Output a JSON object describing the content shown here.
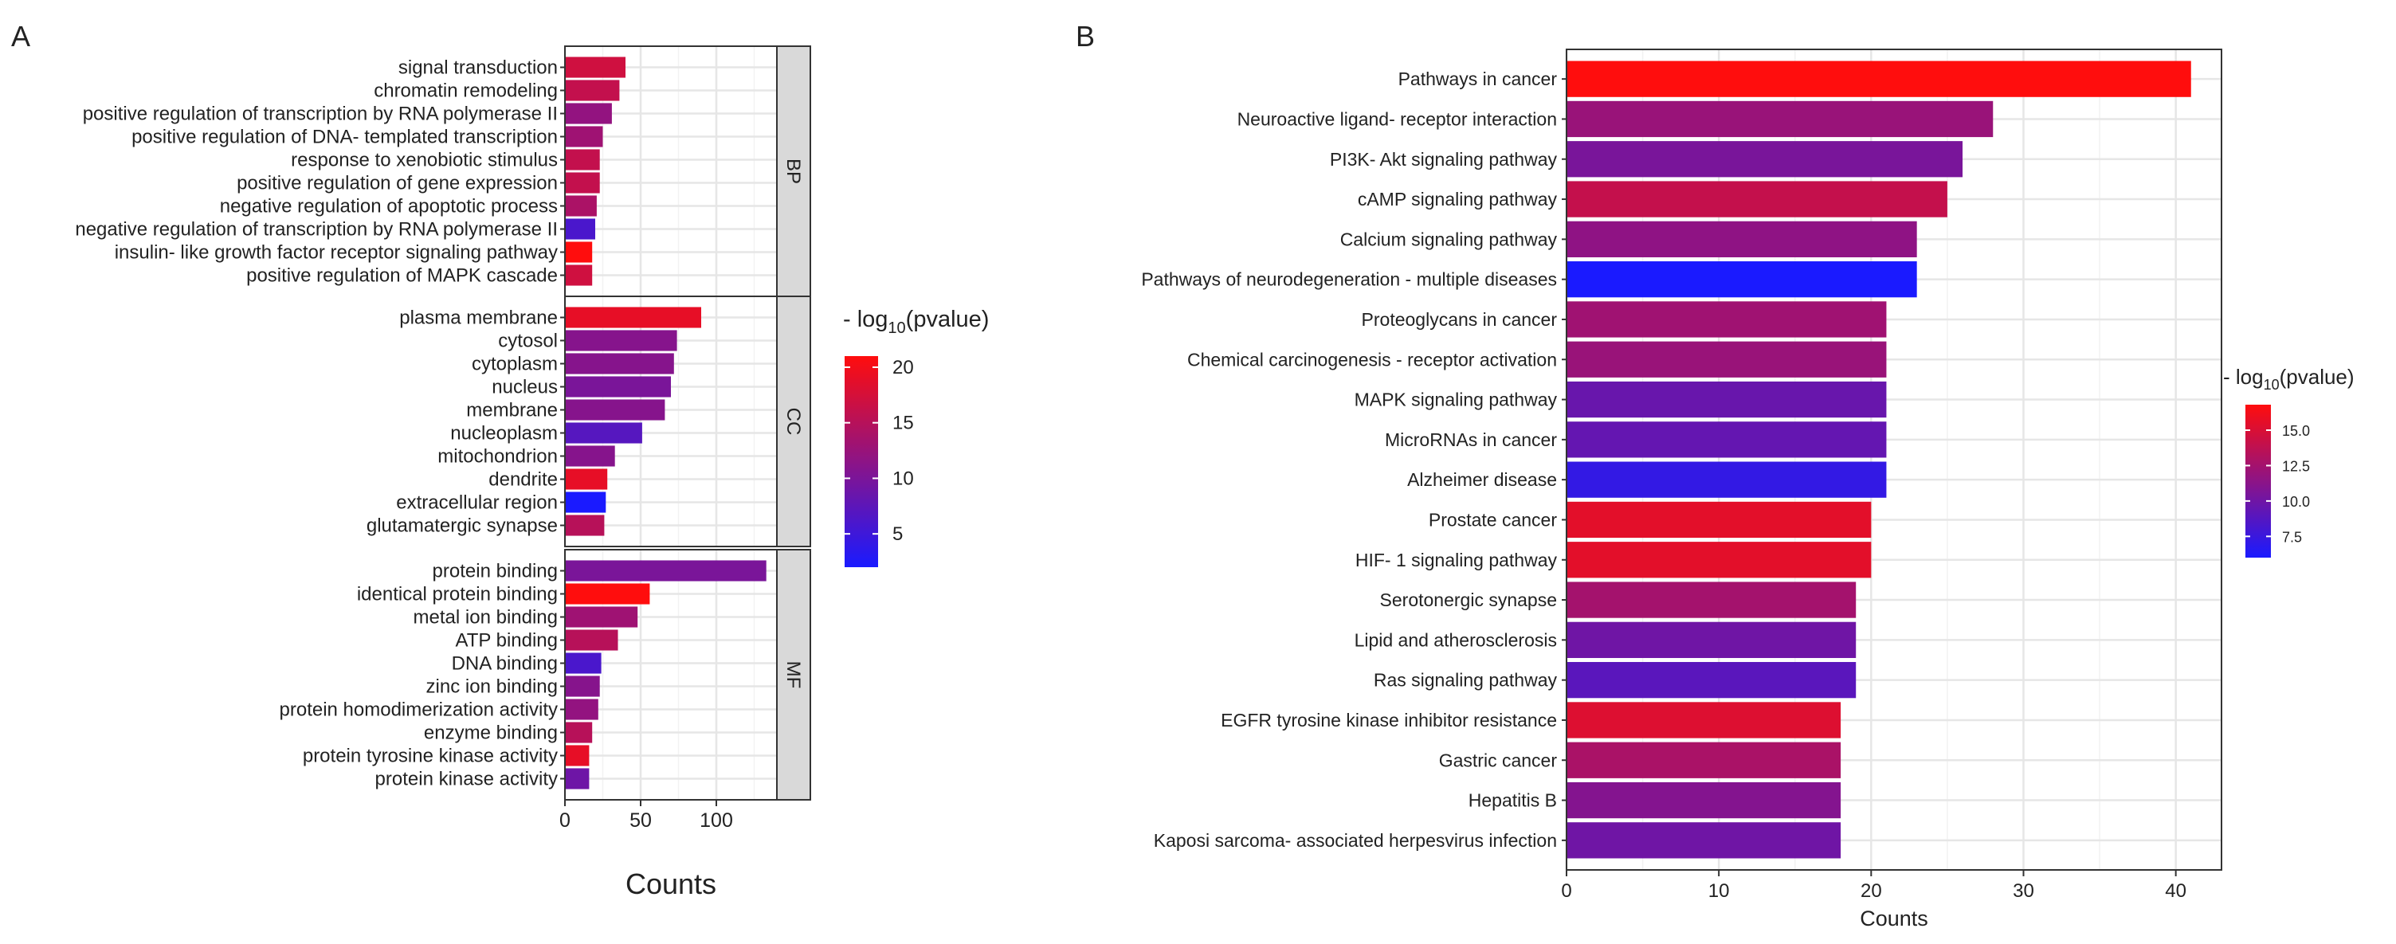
{
  "panel_a": {
    "label": "A",
    "legend_title": "- log10(pvalue)",
    "legend_title_main": "- log",
    "legend_title_sub": "10",
    "legend_title_tail": "(pvalue)",
    "legend_ticks": [
      "20",
      "15",
      "10",
      "5"
    ],
    "legend_tick_values": [
      20,
      15,
      10,
      5
    ]
  },
  "panel_b": {
    "label": "B",
    "legend_title": "- log10(pvalue)",
    "legend_title_main": "- log",
    "legend_title_sub": "10",
    "legend_title_tail": "(pvalue)",
    "legend_ticks": [
      "15.0",
      "12.5",
      "10.0",
      "7.5"
    ],
    "legend_tick_values": [
      15.0,
      12.5,
      10.0,
      7.5
    ]
  },
  "chart_data": [
    {
      "type": "bar",
      "orientation": "horizontal",
      "panel": "A",
      "title": "",
      "xlabel": "Counts",
      "ylabel": "",
      "xlim": [
        0,
        140
      ],
      "xticks": [
        0,
        50,
        100
      ],
      "color_scale": {
        "label": "- log10(pvalue)",
        "range": [
          2,
          21
        ],
        "low_color": "#1a1aff",
        "high_color": "#ff0d0d"
      },
      "facets": [
        {
          "name": "BP",
          "categories": [
            "signal transduction",
            "chromatin remodeling",
            "positive regulation of transcription by RNA polymerase II",
            "positive regulation of DNA- templated transcription",
            "response to xenobiotic stimulus",
            "positive regulation of gene expression",
            "negative regulation of apoptotic process",
            "negative regulation of transcription by RNA polymerase II",
            "insulin- like growth factor receptor signaling pathway",
            "positive regulation of MAPK cascade"
          ],
          "values": [
            40,
            36,
            31,
            25,
            23,
            23,
            21,
            20,
            18,
            18
          ],
          "neg_log10_pvalue": [
            17,
            16,
            12,
            13,
            16,
            16,
            14,
            6,
            21,
            17
          ]
        },
        {
          "name": "CC",
          "categories": [
            "plasma membrane",
            "cytosol",
            "cytoplasm",
            "nucleus",
            "membrane",
            "nucleoplasm",
            "mitochondrion",
            "dendrite",
            "extracellular region",
            "glutamatergic synapse"
          ],
          "values": [
            90,
            74,
            72,
            70,
            66,
            51,
            33,
            28,
            27,
            26
          ],
          "neg_log10_pvalue": [
            19,
            11,
            11,
            10,
            11,
            7,
            11,
            19,
            2,
            15
          ]
        },
        {
          "name": "MF",
          "categories": [
            "protein binding",
            "identical protein binding",
            "metal ion binding",
            "ATP binding",
            "DNA binding",
            "zinc ion binding",
            "protein homodimerization activity",
            "enzyme binding",
            "protein tyrosine kinase activity",
            "protein kinase activity"
          ],
          "values": [
            133,
            56,
            48,
            35,
            24,
            23,
            22,
            18,
            16,
            16
          ],
          "neg_log10_pvalue": [
            10,
            21,
            13,
            15,
            6,
            11,
            12,
            15,
            19,
            9
          ]
        }
      ]
    },
    {
      "type": "bar",
      "orientation": "horizontal",
      "panel": "B",
      "title": "",
      "xlabel": "Counts",
      "ylabel": "",
      "xlim": [
        0,
        43
      ],
      "xticks": [
        0,
        10,
        20,
        30,
        40
      ],
      "color_scale": {
        "label": "- log10(pvalue)",
        "range": [
          6,
          16.8
        ],
        "low_color": "#1a1aff",
        "high_color": "#ff0d0d"
      },
      "categories": [
        "Pathways in cancer",
        "Neuroactive ligand- receptor interaction",
        "PI3K- Akt signaling pathway",
        "cAMP signaling pathway",
        "Calcium signaling pathway",
        "Pathways of neurodegeneration -  multiple diseases",
        "Proteoglycans in cancer",
        "Chemical carcinogenesis -  receptor activation",
        "MAPK signaling pathway",
        "MicroRNAs in cancer",
        "Alzheimer disease",
        "Prostate cancer",
        "HIF- 1 signaling pathway",
        "Serotonergic synapse",
        "Lipid and atherosclerosis",
        "Ras signaling pathway",
        "EGFR tyrosine kinase inhibitor resistance",
        "Gastric cancer",
        "Hepatitis B",
        "Kaposi sarcoma- associated herpesvirus infection"
      ],
      "values": [
        41,
        28,
        26,
        25,
        23,
        23,
        21,
        21,
        21,
        21,
        21,
        20,
        20,
        19,
        19,
        19,
        18,
        18,
        18,
        18
      ],
      "neg_log10_pvalue": [
        16.8,
        12,
        10.5,
        14,
        11.5,
        6.0,
        12.3,
        12,
        9.7,
        9.5,
        7.2,
        15.5,
        15.5,
        12.5,
        10,
        9,
        15.2,
        12.8,
        11,
        10
      ]
    }
  ]
}
